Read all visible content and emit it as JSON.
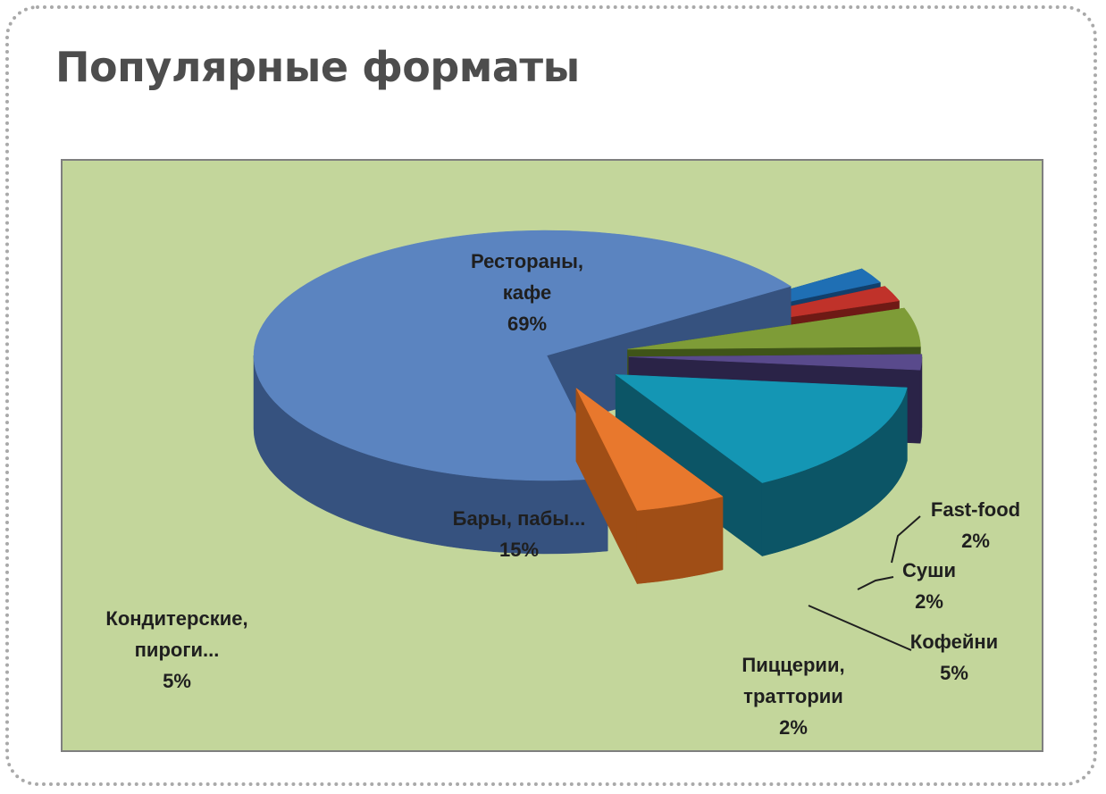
{
  "page_title": "Популярные форматы",
  "chart_data": {
    "type": "pie",
    "title": "",
    "exploded": true,
    "three_d": true,
    "slices": [
      {
        "label_lines": [
          "Рестораны,",
          "кафе"
        ],
        "value": 69,
        "value_text": "69%",
        "color": "#5b84c0",
        "side_color": "#36527f"
      },
      {
        "label_lines": [
          "Fast-food"
        ],
        "value": 2,
        "value_text": "2%",
        "color": "#1f6fb4",
        "side_color": "#123f6b"
      },
      {
        "label_lines": [
          "Суши"
        ],
        "value": 2,
        "value_text": "2%",
        "color": "#c0322a",
        "side_color": "#6e1a15"
      },
      {
        "label_lines": [
          "Кофейни"
        ],
        "value": 5,
        "value_text": "5%",
        "color": "#7e9c37",
        "side_color": "#3f5418"
      },
      {
        "label_lines": [
          "Пиццерии,",
          "траттории"
        ],
        "value": 2,
        "value_text": "2%",
        "color": "#594a8c",
        "side_color": "#2a2347"
      },
      {
        "label_lines": [
          "Бары, пабы..."
        ],
        "value": 15,
        "value_text": "15%",
        "color": "#1496b4",
        "side_color": "#0c5566"
      },
      {
        "label_lines": [
          "Кондитерские,",
          "пироги..."
        ],
        "value": 5,
        "value_text": "5%",
        "color": "#e8782d",
        "side_color": "#a04e16"
      }
    ]
  }
}
